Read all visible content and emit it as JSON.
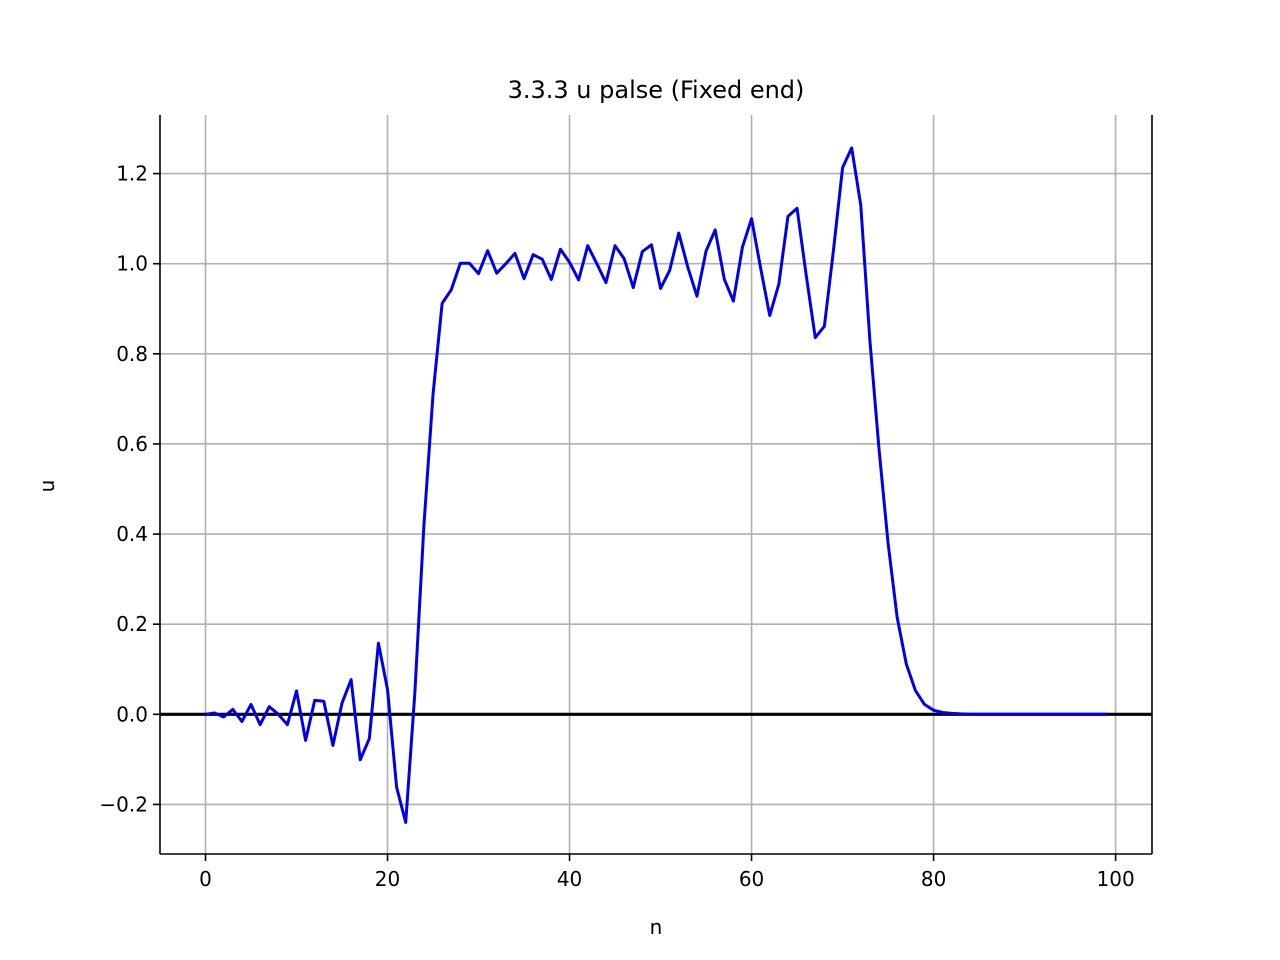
{
  "chart_data": {
    "type": "line",
    "title": "3.3.3 u palse (Fixed end)",
    "xlabel": "n",
    "ylabel": "u",
    "xlim": [
      -5,
      104
    ],
    "ylim": [
      -0.31,
      1.33
    ],
    "xticks": [
      0,
      20,
      40,
      60,
      80,
      100
    ],
    "yticks": [
      -0.2,
      0.0,
      0.2,
      0.4,
      0.6,
      0.8,
      1.0,
      1.2
    ],
    "xtick_labels": [
      "0",
      "20",
      "40",
      "60",
      "80",
      "100"
    ],
    "ytick_labels": [
      "−0.2",
      "0.0",
      "0.2",
      "0.4",
      "0.6",
      "0.8",
      "1.0",
      "1.2"
    ],
    "grid": true,
    "zero_line": {
      "y": 0,
      "color": "#000000"
    },
    "series": [
      {
        "color": "#0000ee",
        "x": [
          0,
          1,
          2,
          3,
          4,
          5,
          6,
          7,
          8,
          9,
          10,
          11,
          12,
          13,
          14,
          15,
          16,
          17,
          18,
          19,
          20,
          21,
          22,
          23,
          24,
          25,
          26,
          27,
          28,
          29,
          30,
          31,
          32,
          33,
          34,
          35,
          36,
          37,
          38,
          39,
          40,
          41,
          42,
          43,
          44,
          45,
          46,
          47,
          48,
          49,
          50,
          51,
          52,
          53,
          54,
          55,
          56,
          57,
          58,
          59,
          60,
          61,
          62,
          63,
          64,
          65,
          66,
          67,
          68,
          69,
          70,
          71,
          72,
          73,
          74,
          75,
          76,
          77,
          78,
          79,
          80,
          81,
          82,
          83,
          84,
          85,
          86,
          87,
          88,
          89,
          90,
          91,
          92,
          93,
          94,
          95,
          96,
          97,
          98,
          99
        ],
        "y": [
          0.0,
          0.003,
          -0.006,
          0.011,
          -0.016,
          0.022,
          -0.023,
          0.017,
          0.0,
          -0.023,
          0.052,
          -0.058,
          0.031,
          0.029,
          -0.069,
          0.025,
          0.077,
          -0.101,
          -0.054,
          0.158,
          0.055,
          -0.162,
          -0.24,
          0.047,
          0.42,
          0.71,
          0.912,
          0.942,
          1.001,
          1.001,
          0.978,
          1.029,
          0.979,
          1.0,
          1.023,
          0.967,
          1.02,
          1.01,
          0.965,
          1.032,
          1.003,
          0.964,
          1.04,
          1.0,
          0.958,
          1.04,
          1.011,
          0.947,
          1.027,
          1.042,
          0.945,
          0.985,
          1.068,
          0.992,
          0.928,
          1.028,
          1.075,
          0.966,
          0.917,
          1.037,
          1.1,
          0.99,
          0.885,
          0.955,
          1.105,
          1.123,
          0.975,
          0.836,
          0.861,
          1.03,
          1.213,
          1.257,
          1.13,
          0.83,
          0.59,
          0.38,
          0.215,
          0.112,
          0.053,
          0.022,
          0.009,
          0.004,
          0.002,
          0.001,
          0.0,
          0.0,
          0.0,
          0.0,
          0.0,
          0.0,
          0.0,
          0.0,
          0.0,
          0.0,
          0.0,
          0.0,
          0.0,
          0.0,
          0.0,
          0.0
        ]
      }
    ]
  }
}
